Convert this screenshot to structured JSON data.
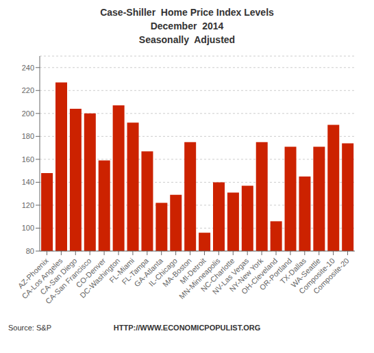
{
  "chart_data": {
    "type": "bar",
    "title": "Case-Shiller  Home Price Index Levels\nDecember  2014\nSeasonally  Adjusted",
    "categories": [
      "AZ-Phoenix",
      "CA-Los Angeles",
      "CA-San Diego",
      "CA-San Francisco",
      "CO-Denver",
      "DC-Washington",
      "FL-Miami",
      "FL-Tampa",
      "GA-Atlanta",
      "IL-Chicago",
      "MA-Boston",
      "MI-Detroit",
      "MN-Minneapolis",
      "NC-Charlotte",
      "NV-Las Vegas",
      "NY-New York",
      "OH-Cleveland",
      "OR-Portland",
      "TX-Dallas",
      "WA-Seattle",
      "Composite-10",
      "Composite-20"
    ],
    "values": [
      148,
      227,
      204,
      200,
      159,
      207,
      192,
      167,
      122,
      129,
      175,
      96,
      140,
      131,
      137,
      175,
      106,
      171,
      145,
      171,
      190,
      174
    ],
    "color": "#cc2200",
    "ylim": [
      80,
      250
    ],
    "yticks": [
      80,
      100,
      120,
      140,
      160,
      180,
      200,
      220,
      240
    ],
    "grid": true,
    "annotations": [
      "HTTP://WWW.ECONOMICPOPULIST.ORG",
      "Source: S&P"
    ]
  }
}
